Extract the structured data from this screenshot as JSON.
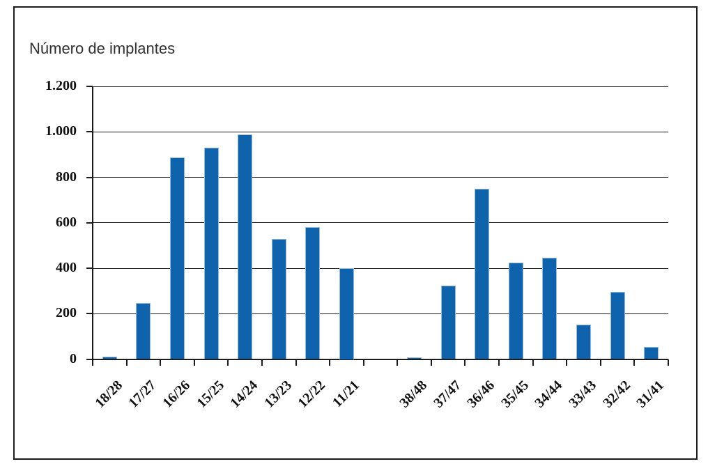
{
  "chart_data": {
    "type": "bar",
    "title": "Número de implantes",
    "xlabel": "",
    "ylabel": "Número de implantes",
    "categories": [
      "18/28",
      "17/27",
      "16/26",
      "15/25",
      "14/24",
      "13/23",
      "12/22",
      "11/21",
      "",
      "38/48",
      "37/47",
      "36/46",
      "35/45",
      "34/44",
      "33/43",
      "32/42",
      "31/41"
    ],
    "values": [
      12,
      246,
      886,
      930,
      990,
      528,
      582,
      400,
      null,
      8,
      322,
      748,
      423,
      445,
      153,
      297,
      55
    ],
    "ylim": [
      0,
      1200
    ],
    "ytick_step": 200,
    "ytick_labels": [
      "0",
      "200",
      "400",
      "600",
      "800",
      "1.000",
      "1.200"
    ],
    "grid": true,
    "legend": "none",
    "bar_color": "#0f63ac",
    "bar_edge_color": "#94b9da",
    "axis_color": "#1c1c1c",
    "title_color": "#2f2f2f"
  }
}
